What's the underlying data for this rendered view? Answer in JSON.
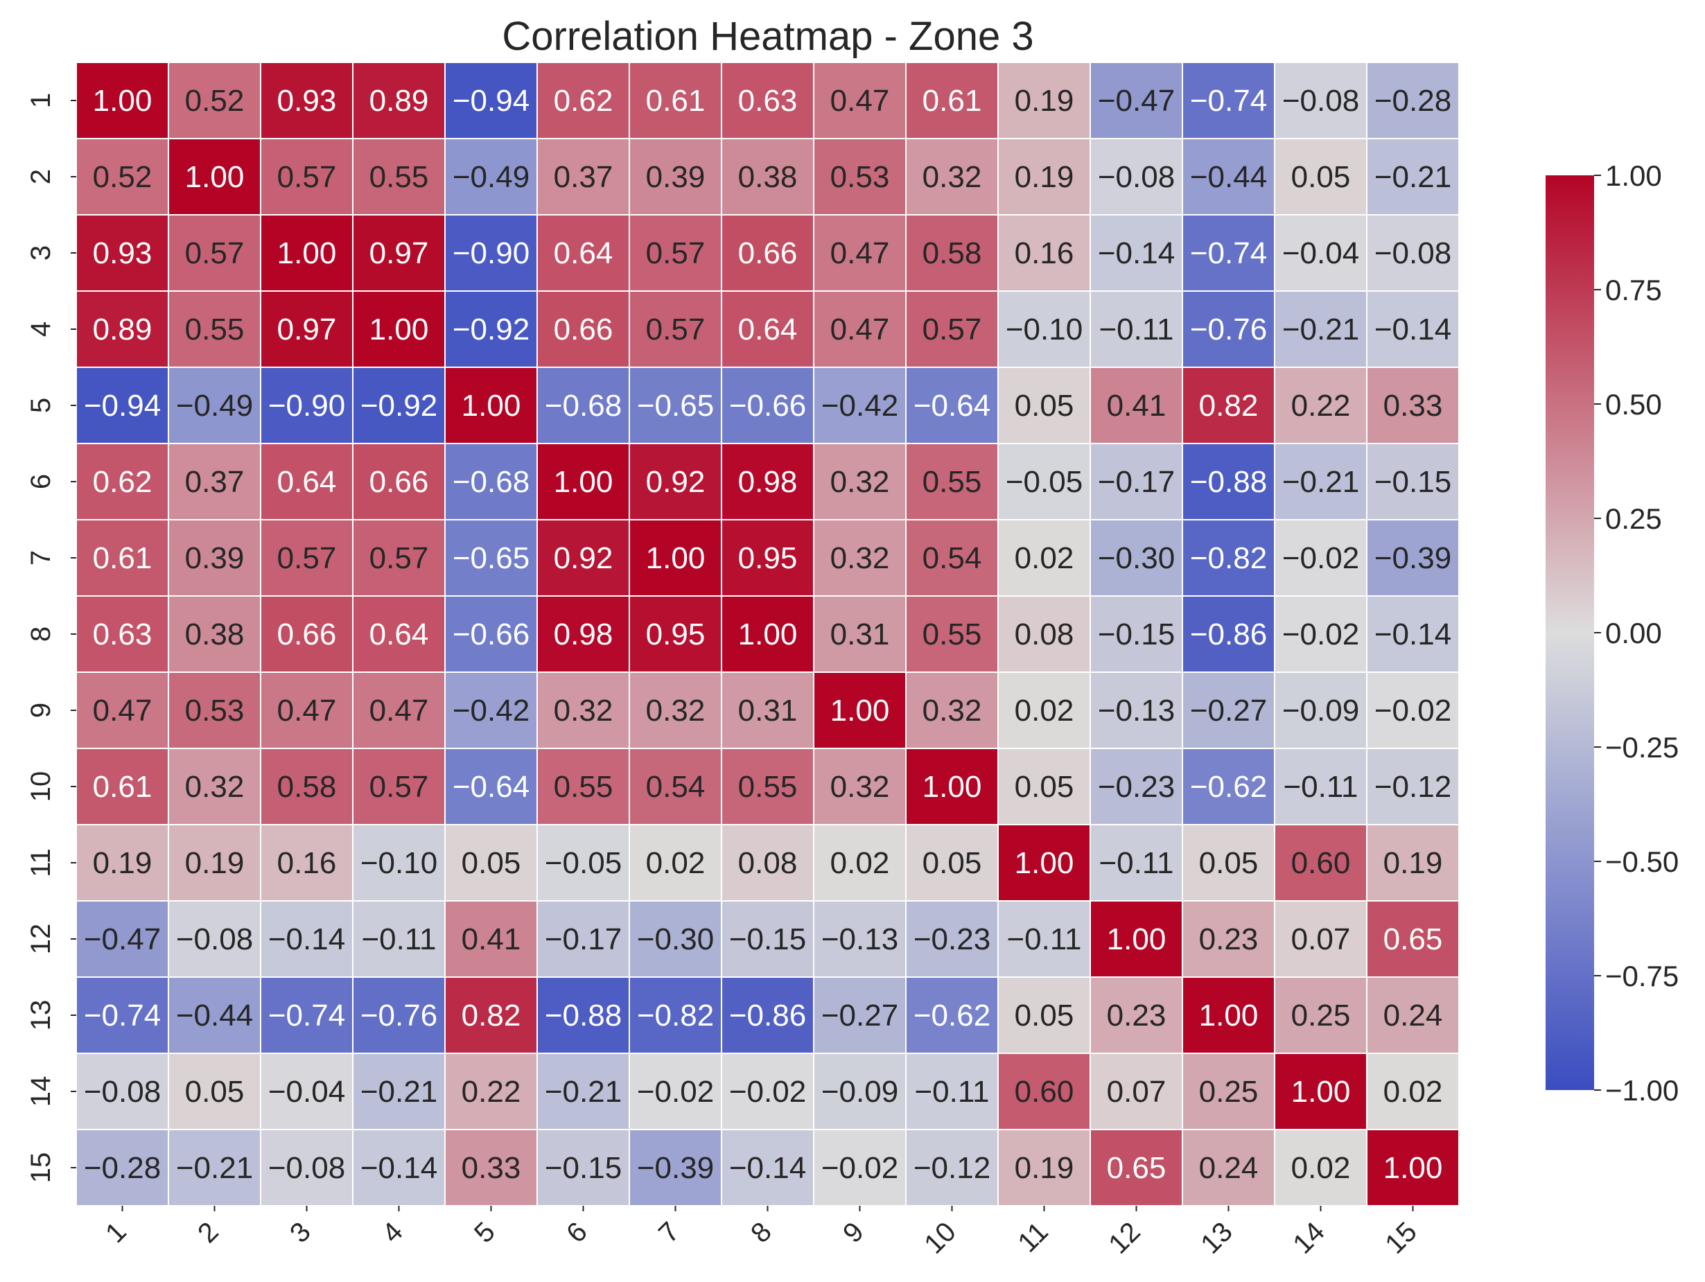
{
  "chart_data": {
    "type": "heatmap",
    "title": "Correlation Heatmap - Zone 3",
    "xlabel": "",
    "ylabel": "",
    "x_categories": [
      "1",
      "2",
      "3",
      "4",
      "5",
      "6",
      "7",
      "8",
      "9",
      "10",
      "11",
      "12",
      "13",
      "14",
      "15"
    ],
    "y_categories": [
      "1",
      "2",
      "3",
      "4",
      "5",
      "6",
      "7",
      "8",
      "9",
      "10",
      "11",
      "12",
      "13",
      "14",
      "15"
    ],
    "values": [
      [
        1.0,
        0.52,
        0.93,
        0.89,
        -0.94,
        0.62,
        0.61,
        0.63,
        0.47,
        0.61,
        0.19,
        -0.47,
        -0.74,
        -0.08,
        -0.28
      ],
      [
        0.52,
        1.0,
        0.57,
        0.55,
        -0.49,
        0.37,
        0.39,
        0.38,
        0.53,
        0.32,
        0.19,
        -0.08,
        -0.44,
        0.05,
        -0.21
      ],
      [
        0.93,
        0.57,
        1.0,
        0.97,
        -0.9,
        0.64,
        0.57,
        0.66,
        0.47,
        0.58,
        0.16,
        -0.14,
        -0.74,
        -0.04,
        -0.08
      ],
      [
        0.89,
        0.55,
        0.97,
        1.0,
        -0.92,
        0.66,
        0.57,
        0.64,
        0.47,
        0.57,
        -0.1,
        -0.11,
        -0.76,
        -0.21,
        -0.14
      ],
      [
        -0.94,
        -0.49,
        -0.9,
        -0.92,
        1.0,
        -0.68,
        -0.65,
        -0.66,
        -0.42,
        -0.64,
        0.05,
        0.41,
        0.82,
        0.22,
        0.33
      ],
      [
        0.62,
        0.37,
        0.64,
        0.66,
        -0.68,
        1.0,
        0.92,
        0.98,
        0.32,
        0.55,
        -0.05,
        -0.17,
        -0.88,
        -0.21,
        -0.15
      ],
      [
        0.61,
        0.39,
        0.57,
        0.57,
        -0.65,
        0.92,
        1.0,
        0.95,
        0.32,
        0.54,
        0.02,
        -0.3,
        -0.82,
        -0.02,
        -0.39
      ],
      [
        0.63,
        0.38,
        0.66,
        0.64,
        -0.66,
        0.98,
        0.95,
        1.0,
        0.31,
        0.55,
        0.08,
        -0.15,
        -0.86,
        -0.02,
        -0.14
      ],
      [
        0.47,
        0.53,
        0.47,
        0.47,
        -0.42,
        0.32,
        0.32,
        0.31,
        1.0,
        0.32,
        0.02,
        -0.13,
        -0.27,
        -0.09,
        -0.02
      ],
      [
        0.61,
        0.32,
        0.58,
        0.57,
        -0.64,
        0.55,
        0.54,
        0.55,
        0.32,
        1.0,
        0.05,
        -0.23,
        -0.62,
        -0.11,
        -0.12
      ],
      [
        0.19,
        0.19,
        0.16,
        -0.1,
        0.05,
        -0.05,
        0.02,
        0.08,
        0.02,
        0.05,
        1.0,
        -0.11,
        0.05,
        0.6,
        0.19
      ],
      [
        -0.47,
        -0.08,
        -0.14,
        -0.11,
        0.41,
        -0.17,
        -0.3,
        -0.15,
        -0.13,
        -0.23,
        -0.11,
        1.0,
        0.23,
        0.07,
        0.65
      ],
      [
        -0.74,
        -0.44,
        -0.74,
        -0.76,
        0.82,
        -0.88,
        -0.82,
        -0.86,
        -0.27,
        -0.62,
        0.05,
        0.23,
        1.0,
        0.25,
        0.24
      ],
      [
        -0.08,
        0.05,
        -0.04,
        -0.21,
        0.22,
        -0.21,
        -0.02,
        -0.02,
        -0.09,
        -0.11,
        0.6,
        0.07,
        0.25,
        1.0,
        0.02
      ],
      [
        -0.28,
        -0.21,
        -0.08,
        -0.14,
        0.33,
        -0.15,
        -0.39,
        -0.14,
        -0.02,
        -0.12,
        0.19,
        0.65,
        0.24,
        0.02,
        1.0
      ]
    ],
    "value_format": "2 decimals",
    "colormap": "coolwarm",
    "colormap_stops": [
      "#3b4cc0",
      "#dddddd",
      "#b40426"
    ],
    "vmin": -1.0,
    "vmax": 1.0,
    "colorbar_ticks": [
      "1.00",
      "0.75",
      "0.50",
      "0.25",
      "0.00",
      "−0.25",
      "−0.50",
      "−0.75",
      "−1.00"
    ],
    "colorbar_tick_values": [
      1.0,
      0.75,
      0.5,
      0.25,
      0.0,
      -0.25,
      -0.5,
      -0.75,
      -1.0
    ],
    "grid": "white cell borders",
    "legend": "colorbar right"
  }
}
